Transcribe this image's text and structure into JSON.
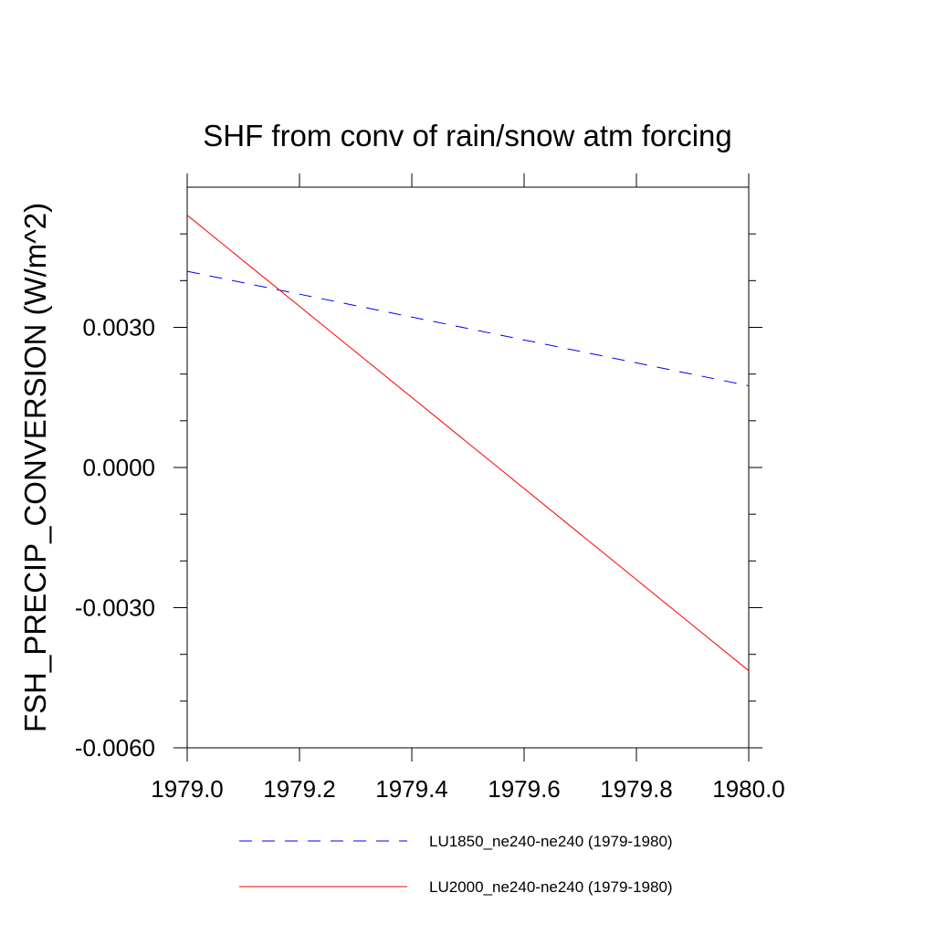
{
  "chart_data": {
    "type": "line",
    "title": "SHF from conv of rain/snow atm forcing",
    "xlabel": "",
    "ylabel": "FSH_PRECIP_CONVERSION  (W/m^2)",
    "xlim": [
      1979.0,
      1980.0
    ],
    "ylim": [
      -0.006,
      0.006
    ],
    "x_ticks": [
      1979.0,
      1979.2,
      1979.4,
      1979.6,
      1979.8,
      1980.0
    ],
    "x_tick_labels": [
      "1979.0",
      "1979.2",
      "1979.4",
      "1979.6",
      "1979.8",
      "1980.0"
    ],
    "y_ticks": [
      -0.006,
      -0.003,
      0.0,
      0.003
    ],
    "y_tick_labels": [
      "-0.0060",
      "-0.0030",
      "0.0000",
      "0.0030"
    ],
    "grid": false,
    "legend_position": "bottom",
    "series": [
      {
        "name": "LU1850_ne240-ne240 (1979-1980)",
        "color": "#0000ff",
        "style": "dashed",
        "x": [
          1979.0,
          1980.0
        ],
        "y": [
          0.0042,
          0.00175
        ]
      },
      {
        "name": "LU2000_ne240-ne240 (1979-1980)",
        "color": "#ff0000",
        "style": "solid",
        "x": [
          1979.0,
          1980.0
        ],
        "y": [
          0.0054,
          -0.00435
        ]
      }
    ]
  }
}
